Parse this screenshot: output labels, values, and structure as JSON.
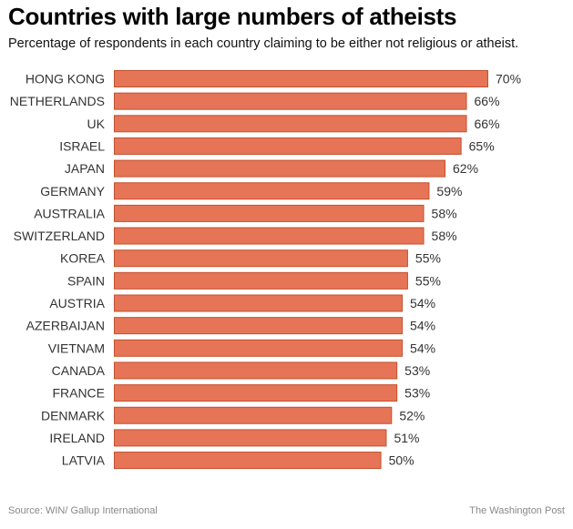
{
  "chart_data": {
    "type": "bar",
    "orientation": "horizontal",
    "title": "Countries with large numbers of atheists",
    "subtitle": "Percentage of respondents in each country claiming to be either not religious or atheist.",
    "categories": [
      "HONG KONG",
      "NETHERLANDS",
      "UK",
      "ISRAEL",
      "JAPAN",
      "GERMANY",
      "AUSTRALIA",
      "SWITZERLAND",
      "KOREA",
      "SPAIN",
      "AUSTRIA",
      "AZERBAIJAN",
      "VIETNAM",
      "CANADA",
      "FRANCE",
      "DENMARK",
      "IRELAND",
      "LATVIA"
    ],
    "values": [
      70,
      66,
      66,
      65,
      62,
      59,
      58,
      58,
      55,
      55,
      54,
      54,
      54,
      53,
      53,
      52,
      51,
      50
    ],
    "value_suffix": "%",
    "xlim": [
      0,
      70
    ],
    "grid": false,
    "bar_color": "#e57556",
    "bar_border_color": "#c4502f"
  },
  "footer": {
    "source": "Source: WIN/ Gallup International",
    "credit": "The Washington Post"
  }
}
